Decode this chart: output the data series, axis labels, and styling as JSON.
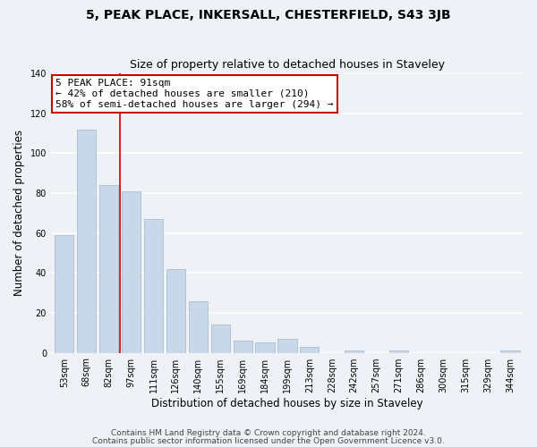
{
  "title": "5, PEAK PLACE, INKERSALL, CHESTERFIELD, S43 3JB",
  "subtitle": "Size of property relative to detached houses in Staveley",
  "xlabel": "Distribution of detached houses by size in Staveley",
  "ylabel": "Number of detached properties",
  "bar_labels": [
    "53sqm",
    "68sqm",
    "82sqm",
    "97sqm",
    "111sqm",
    "126sqm",
    "140sqm",
    "155sqm",
    "169sqm",
    "184sqm",
    "199sqm",
    "213sqm",
    "228sqm",
    "242sqm",
    "257sqm",
    "271sqm",
    "286sqm",
    "300sqm",
    "315sqm",
    "329sqm",
    "344sqm"
  ],
  "bar_values": [
    59,
    112,
    84,
    81,
    67,
    42,
    26,
    14,
    6,
    5,
    7,
    3,
    0,
    1,
    0,
    1,
    0,
    0,
    0,
    0,
    1
  ],
  "bar_color": "#c8d8e8",
  "bar_edge_color": "#a0b8cc",
  "annotation_text": "5 PEAK PLACE: 91sqm\n← 42% of detached houses are smaller (210)\n58% of semi-detached houses are larger (294) →",
  "annotation_box_color": "#ffffff",
  "annotation_box_edge": "#cc0000",
  "vline_color": "#cc0000",
  "vline_x": 2.5,
  "ylim": [
    0,
    140
  ],
  "yticks": [
    0,
    20,
    40,
    60,
    80,
    100,
    120,
    140
  ],
  "footer_line1": "Contains HM Land Registry data © Crown copyright and database right 2024.",
  "footer_line2": "Contains public sector information licensed under the Open Government Licence v3.0.",
  "bg_color": "#eef2f6",
  "plot_bg_color": "#eef2f6",
  "grid_color": "#ffffff",
  "title_fontsize": 10,
  "subtitle_fontsize": 9,
  "tick_fontsize": 7,
  "label_fontsize": 8.5,
  "footer_fontsize": 6.5,
  "ann_fontsize": 8
}
